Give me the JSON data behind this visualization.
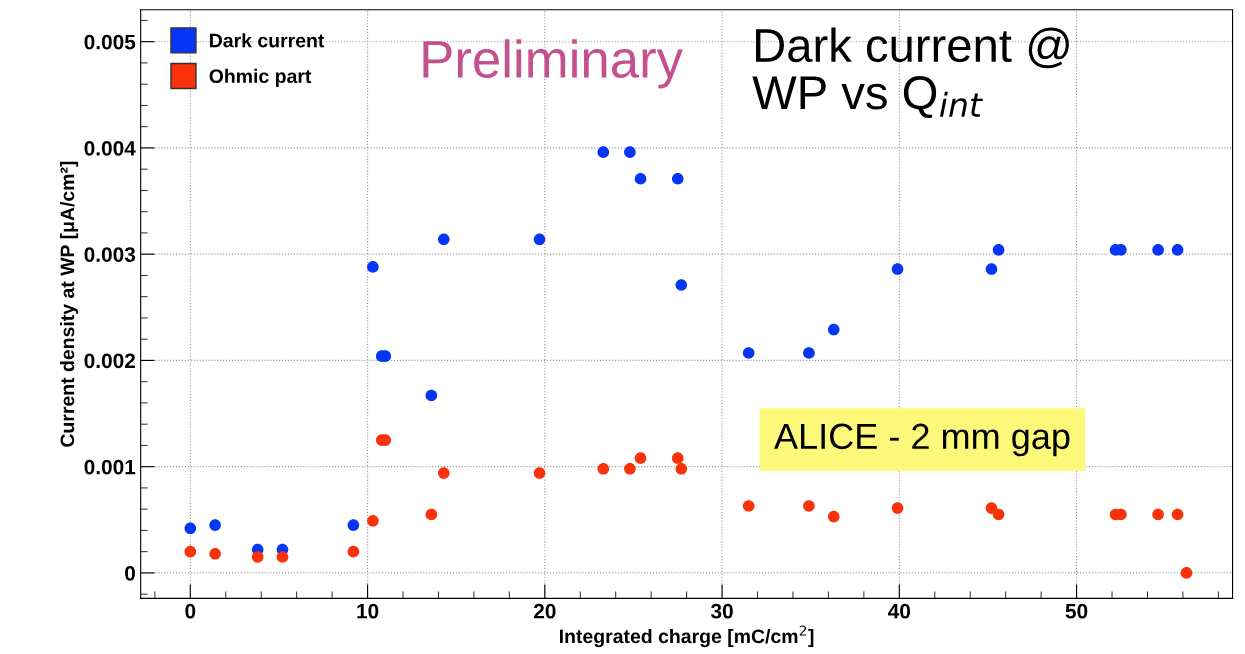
{
  "chart_data": {
    "type": "scatter",
    "title": "Dark current @\nWP vs Q$_{int}$",
    "xlabel": "Integrated charge [mC/cm$^{2}$]",
    "ylabel": "Current density at WP [μA/cm²]",
    "annotations": [
      "Preliminary",
      "ALICE - 2 mm gap"
    ],
    "series": [
      {
        "name": "Dark current",
        "color": "#0636f5",
        "x": [
          0,
          1.4,
          3.8,
          5.2,
          9.2,
          10.3,
          10.8,
          11.0,
          13.6,
          14.3,
          19.7,
          23.3,
          24.8,
          25.4,
          27.5,
          27.7,
          31.5,
          34.9,
          36.3,
          39.9,
          45.2,
          45.6,
          52.2,
          52.5,
          54.6,
          55.7
        ],
        "values": [
          0.00042,
          0.00045,
          0.00022,
          0.00022,
          0.00045,
          0.00288,
          0.00204,
          0.00204,
          0.00167,
          0.00314,
          0.00314,
          0.00396,
          0.00396,
          0.00371,
          0.00371,
          0.00271,
          0.00207,
          0.00207,
          0.00229,
          0.00286,
          0.00286,
          0.00304,
          0.00304,
          0.00304,
          0.00304,
          0.00304
        ]
      },
      {
        "name": "Ohmic part",
        "color": "#fa3209",
        "x": [
          0,
          1.4,
          3.8,
          5.2,
          9.2,
          10.3,
          10.8,
          11.0,
          13.6,
          14.3,
          19.7,
          23.3,
          24.8,
          25.4,
          27.5,
          27.7,
          31.5,
          34.9,
          36.3,
          39.9,
          45.2,
          45.6,
          52.2,
          52.5,
          54.6,
          55.7,
          56.2
        ],
        "values": [
          0.0002,
          0.00018,
          0.00015,
          0.00015,
          0.0002,
          0.00049,
          0.00125,
          0.00125,
          0.00055,
          0.00094,
          0.00094,
          0.00098,
          0.00098,
          0.00108,
          0.00108,
          0.00098,
          0.00063,
          0.00063,
          0.00053,
          0.00061,
          0.00061,
          0.00055,
          0.00055,
          0.00055,
          0.00055,
          0.00055,
          0.0
        ]
      }
    ],
    "xlim": [
      -2.8,
      58.8
    ],
    "xticks": [
      0,
      10,
      20,
      30,
      40,
      50
    ],
    "ylim": [
      -0.00024,
      0.0053
    ],
    "yticks": [
      0,
      0.001,
      0.002,
      0.003,
      0.004,
      0.005
    ],
    "grid": true,
    "legend": "top left"
  }
}
